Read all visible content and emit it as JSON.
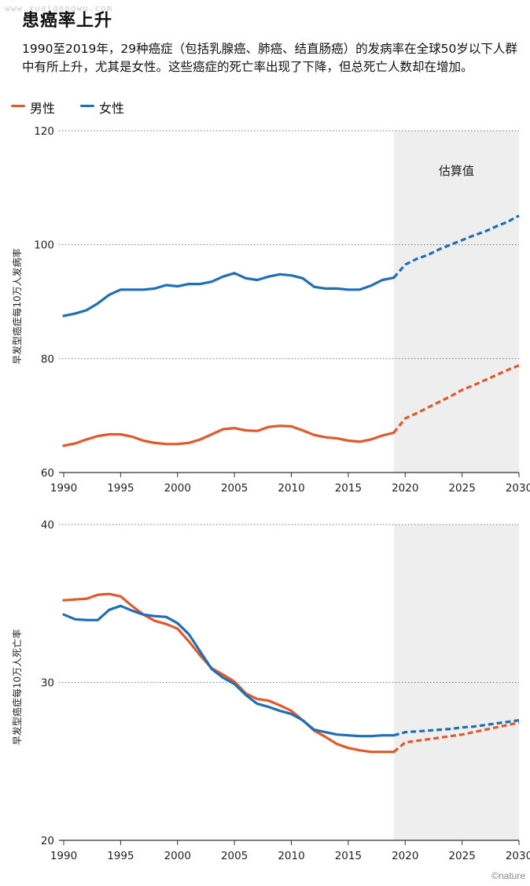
{
  "watermark": "www.xuaigongwu.com",
  "title": "患癌率上升",
  "subtitle": "1990至2019年，29种癌症（包括乳腺癌、肺癌、结直肠癌）的发病率在全球50岁以下人群中有所上升，尤其是女性。这些癌症的死亡率出现了下降，但总死亡人数却在增加。",
  "credit": "©nature",
  "colors": {
    "male": "#e0592a",
    "female": "#1f6fb5",
    "shade": "#eeeeee",
    "grid": "#777777"
  },
  "legend": [
    {
      "label": "男性",
      "color": "#e0592a"
    },
    {
      "label": "女性",
      "color": "#1f6fb5"
    }
  ],
  "chart_data": [
    {
      "type": "line",
      "ylabel": "早发型癌症每10万人发病率",
      "xlim": [
        1990,
        2030
      ],
      "ylim": [
        60,
        120
      ],
      "yticks": [
        60,
        80,
        100,
        120
      ],
      "xticks": [
        1990,
        1995,
        2000,
        2005,
        2010,
        2015,
        2020,
        2025,
        2030
      ],
      "grid": "horizontal dotted",
      "shaded_region": {
        "from": 2019,
        "to": 2030,
        "label": "估算值"
      },
      "series": [
        {
          "name": "女性",
          "x": [
            1990,
            1991,
            1992,
            1993,
            1994,
            1995,
            1996,
            1997,
            1998,
            1999,
            2000,
            2001,
            2002,
            2003,
            2004,
            2005,
            2006,
            2007,
            2008,
            2009,
            2010,
            2011,
            2012,
            2013,
            2014,
            2015,
            2016,
            2017,
            2018,
            2019
          ],
          "values": [
            87.5,
            87.9,
            88.5,
            89.7,
            91.2,
            92.1,
            92.1,
            92.1,
            92.3,
            92.9,
            92.7,
            93.1,
            93.1,
            93.5,
            94.4,
            95.0,
            94.1,
            93.8,
            94.4,
            94.8,
            94.6,
            94.1,
            92.6,
            92.3,
            92.3,
            92.1,
            92.1,
            92.8,
            93.8,
            94.2
          ],
          "projection_x": [
            2019,
            2020,
            2021,
            2022,
            2023,
            2024,
            2025,
            2026,
            2027,
            2028,
            2029,
            2030
          ],
          "projection_values": [
            94.2,
            96.5,
            97.5,
            98.2,
            99.2,
            100.0,
            100.8,
            101.6,
            102.3,
            103.2,
            104.0,
            105.1
          ]
        },
        {
          "name": "男性",
          "x": [
            1990,
            1991,
            1992,
            1993,
            1994,
            1995,
            1996,
            1997,
            1998,
            1999,
            2000,
            2001,
            2002,
            2003,
            2004,
            2005,
            2006,
            2007,
            2008,
            2009,
            2010,
            2011,
            2012,
            2013,
            2014,
            2015,
            2016,
            2017,
            2018,
            2019
          ],
          "values": [
            64.7,
            65.1,
            65.8,
            66.4,
            66.7,
            66.7,
            66.3,
            65.6,
            65.2,
            65.0,
            65.0,
            65.2,
            65.8,
            66.7,
            67.6,
            67.8,
            67.4,
            67.3,
            68.0,
            68.2,
            68.1,
            67.4,
            66.6,
            66.2,
            66.0,
            65.6,
            65.4,
            65.8,
            66.5,
            67.0
          ],
          "projection_x": [
            2019,
            2020,
            2021,
            2022,
            2023,
            2024,
            2025,
            2026,
            2027,
            2028,
            2029,
            2030
          ],
          "projection_values": [
            67.0,
            69.5,
            70.4,
            71.4,
            72.4,
            73.4,
            74.5,
            75.3,
            76.2,
            77.1,
            78.0,
            78.8
          ]
        }
      ]
    },
    {
      "type": "line",
      "ylabel": "早发型癌症每10万人死亡率",
      "xlim": [
        1990,
        2030
      ],
      "ylim": [
        20,
        40
      ],
      "yticks": [
        20,
        30,
        40
      ],
      "xticks": [
        1990,
        1995,
        2000,
        2005,
        2010,
        2015,
        2020,
        2025,
        2030
      ],
      "grid": "horizontal dotted",
      "shaded_region": {
        "from": 2019,
        "to": 2030,
        "label": ""
      },
      "series": [
        {
          "name": "男性",
          "x": [
            1990,
            1991,
            1992,
            1993,
            1994,
            1995,
            1996,
            1997,
            1998,
            1999,
            2000,
            2001,
            2002,
            2003,
            2004,
            2005,
            2006,
            2007,
            2008,
            2009,
            2010,
            2011,
            2012,
            2013,
            2014,
            2015,
            2016,
            2017,
            2018,
            2019
          ],
          "values": [
            35.2,
            35.25,
            35.3,
            35.55,
            35.6,
            35.45,
            34.85,
            34.3,
            33.9,
            33.7,
            33.4,
            32.6,
            31.7,
            30.9,
            30.5,
            30.05,
            29.3,
            28.95,
            28.85,
            28.55,
            28.2,
            27.6,
            26.95,
            26.55,
            26.1,
            25.85,
            25.7,
            25.6,
            25.6,
            25.6
          ],
          "projection_x": [
            2019,
            2020,
            2021,
            2022,
            2023,
            2024,
            2025,
            2026,
            2027,
            2028,
            2029,
            2030
          ],
          "projection_values": [
            25.6,
            26.2,
            26.3,
            26.4,
            26.5,
            26.6,
            26.7,
            26.85,
            27.0,
            27.15,
            27.3,
            27.45
          ]
        },
        {
          "name": "女性",
          "x": [
            1990,
            1991,
            1992,
            1993,
            1994,
            1995,
            1996,
            1997,
            1998,
            1999,
            2000,
            2001,
            2002,
            2003,
            2004,
            2005,
            2006,
            2007,
            2008,
            2009,
            2010,
            2011,
            2012,
            2013,
            2014,
            2015,
            2016,
            2017,
            2018,
            2019
          ],
          "values": [
            34.3,
            34.0,
            33.95,
            33.95,
            34.6,
            34.85,
            34.55,
            34.3,
            34.2,
            34.15,
            33.75,
            33.05,
            31.95,
            30.85,
            30.3,
            29.9,
            29.2,
            28.65,
            28.45,
            28.2,
            28.0,
            27.6,
            27.0,
            26.85,
            26.7,
            26.65,
            26.6,
            26.6,
            26.65,
            26.65
          ],
          "projection_x": [
            2019,
            2020,
            2021,
            2022,
            2023,
            2024,
            2025,
            2026,
            2027,
            2028,
            2029,
            2030
          ],
          "projection_values": [
            26.65,
            26.85,
            26.9,
            26.95,
            27.0,
            27.05,
            27.15,
            27.2,
            27.3,
            27.4,
            27.5,
            27.6
          ]
        }
      ]
    }
  ]
}
